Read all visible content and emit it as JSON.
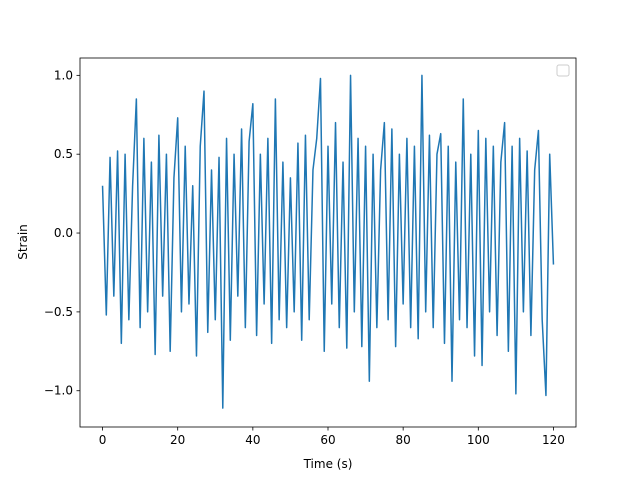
{
  "chart_data": {
    "type": "line",
    "xlabel": "Time (s)",
    "ylabel": "Strain",
    "xlim": [
      -6,
      126
    ],
    "ylim": [
      -1.23,
      1.11
    ],
    "xticks": [
      0,
      20,
      40,
      60,
      80,
      100,
      120
    ],
    "yticks": [
      {
        "value": -1,
        "label": "−1.0"
      },
      {
        "value": -0.5,
        "label": "−0.5"
      },
      {
        "value": 0,
        "label": "0.0"
      },
      0.5,
      {
        "value": 1,
        "label": "1.0"
      }
    ],
    "legend": "upper right",
    "series": [
      {
        "color": "#1f77b4",
        "x": [
          0,
          1,
          2,
          3,
          4,
          5,
          6,
          7,
          8,
          9,
          10,
          11,
          12,
          13,
          14,
          15,
          16,
          17,
          18,
          19,
          20,
          21,
          22,
          23,
          24,
          25,
          26,
          27,
          28,
          29,
          30,
          31,
          32,
          33,
          34,
          35,
          36,
          37,
          38,
          39,
          40,
          41,
          42,
          43,
          44,
          45,
          46,
          47,
          48,
          49,
          50,
          51,
          52,
          53,
          54,
          55,
          56,
          57,
          58,
          59,
          60,
          61,
          62,
          63,
          64,
          65,
          66,
          67,
          68,
          69,
          70,
          71,
          72,
          73,
          74,
          75,
          76,
          77,
          78,
          79,
          80,
          81,
          82,
          83,
          84,
          85,
          86,
          87,
          88,
          89,
          90,
          91,
          92,
          93,
          94,
          95,
          96,
          97,
          98,
          99,
          100,
          101,
          102,
          103,
          104,
          105,
          106,
          107,
          108,
          109,
          110,
          111,
          112,
          113,
          114,
          115,
          116,
          117,
          118,
          119,
          120
        ],
        "values": [
          0.3,
          -0.52,
          0.48,
          -0.4,
          0.52,
          -0.7,
          0.5,
          -0.55,
          0.3,
          0.85,
          -0.6,
          0.6,
          -0.5,
          0.45,
          -0.77,
          0.62,
          -0.4,
          0.5,
          -0.75,
          0.35,
          0.73,
          -0.5,
          0.55,
          -0.45,
          0.3,
          -0.78,
          0.55,
          0.9,
          -0.63,
          0.4,
          -0.55,
          0.48,
          -1.11,
          0.6,
          -0.68,
          0.5,
          -0.4,
          0.66,
          -0.6,
          0.58,
          0.82,
          -0.65,
          0.5,
          -0.45,
          0.6,
          -0.7,
          0.85,
          -0.55,
          0.45,
          -0.6,
          0.35,
          -0.5,
          0.57,
          -0.68,
          0.62,
          -0.55,
          0.4,
          0.6,
          0.98,
          -0.75,
          0.55,
          -0.45,
          0.7,
          -0.6,
          0.45,
          -0.73,
          1.0,
          -0.5,
          0.6,
          -0.72,
          0.55,
          -0.94,
          0.5,
          -0.6,
          0.4,
          0.7,
          -0.55,
          0.66,
          -0.72,
          0.5,
          -0.45,
          0.6,
          -0.6,
          0.55,
          -0.67,
          1.0,
          -0.5,
          0.62,
          -0.6,
          0.5,
          0.63,
          -0.7,
          0.55,
          -0.94,
          0.45,
          -0.55,
          0.85,
          -0.6,
          0.5,
          -0.78,
          0.65,
          -0.84,
          0.6,
          -0.5,
          0.55,
          -0.65,
          0.45,
          0.7,
          -0.75,
          0.55,
          -1.02,
          0.6,
          -0.5,
          0.52,
          -0.65,
          0.4,
          0.65,
          -0.55,
          -1.03,
          0.5,
          -0.2
        ]
      }
    ]
  }
}
